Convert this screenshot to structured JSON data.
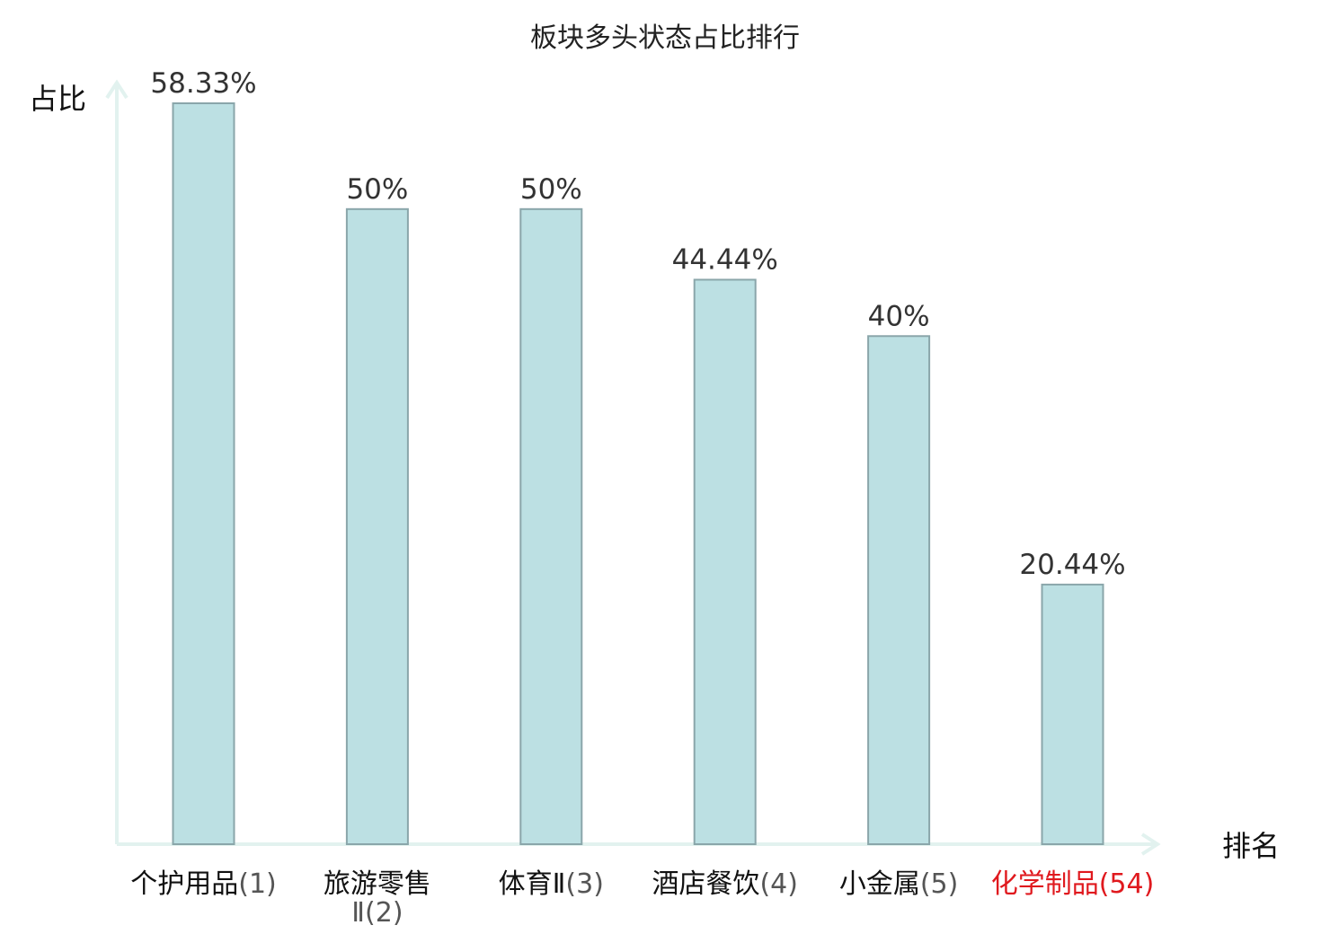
{
  "chart_data": {
    "type": "bar",
    "title": "板块多头状态占比排行",
    "ylabel": "占比",
    "xlabel": "排名",
    "categories": [
      {
        "name": "个护用品",
        "rank": "(1)",
        "highlight": false
      },
      {
        "name": "旅游零售",
        "name2": "Ⅱ",
        "rank": "(2)",
        "highlight": false
      },
      {
        "name": "体育Ⅱ",
        "rank": "(3)",
        "highlight": false
      },
      {
        "name": "酒店餐饮",
        "rank": "(4)",
        "highlight": false
      },
      {
        "name": "小金属",
        "rank": "(5)",
        "highlight": false
      },
      {
        "name": "化学制品",
        "rank": "(54)",
        "highlight": true
      }
    ],
    "values": [
      58.33,
      50,
      50,
      44.44,
      40,
      20.44
    ],
    "value_labels": [
      "58.33%",
      "50%",
      "50%",
      "44.44%",
      "40%",
      "20.44%"
    ],
    "ylim": [
      0,
      60
    ],
    "grid": false,
    "colors": {
      "bar_fill": "#bce0e3",
      "bar_stroke": "#8aa6aa",
      "axis": "#e2f2ef",
      "highlight": "#e0191e",
      "name_text": "#111111",
      "rank_text": "#555555"
    }
  }
}
